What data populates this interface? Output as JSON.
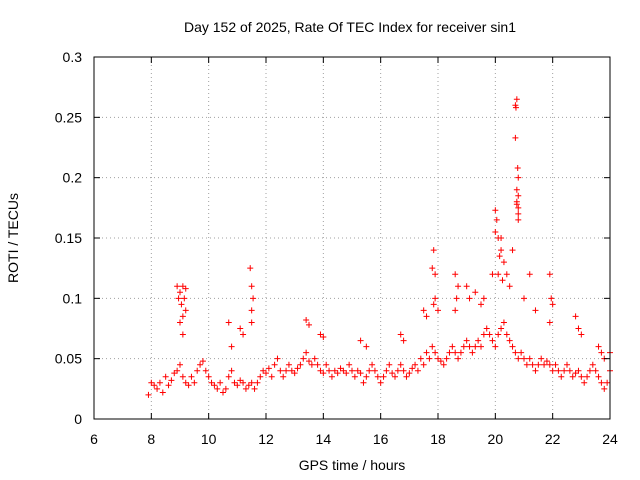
{
  "chart_data": {
    "type": "scatter",
    "title": "Day 152 of 2025, Rate Of TEC Index for receiver sin1",
    "xlabel": "GPS time / hours",
    "ylabel": "ROTI / TECUs",
    "xlim": [
      6,
      24
    ],
    "ylim": [
      0,
      0.3
    ],
    "x_ticks": [
      6,
      8,
      10,
      12,
      14,
      16,
      18,
      20,
      22,
      24
    ],
    "x_tick_labels": [
      "6",
      "8",
      "10",
      "12",
      "14",
      "16",
      "18",
      "20",
      "22",
      "24"
    ],
    "y_ticks": [
      0,
      0.05,
      0.1,
      0.15,
      0.2,
      0.25,
      0.3
    ],
    "y_tick_labels": [
      "0",
      "0.05",
      "0.1",
      "0.15",
      "0.2",
      "0.25",
      "0.3"
    ],
    "grid": true,
    "marker": "+",
    "series": [
      {
        "name": "ROTI",
        "color": "#ff0000",
        "x": [
          7.9,
          8.0,
          8.1,
          8.2,
          8.3,
          8.4,
          8.5,
          8.6,
          8.7,
          8.8,
          8.9,
          9.0,
          9.1,
          9.2,
          9.3,
          9.4,
          9.5,
          9.6,
          9.7,
          9.8,
          9.9,
          10.0,
          10.1,
          10.2,
          10.3,
          10.4,
          10.5,
          10.6,
          10.7,
          10.8,
          10.9,
          11.0,
          11.1,
          11.2,
          11.3,
          11.4,
          11.5,
          11.6,
          11.7,
          11.8,
          11.9,
          12.0,
          12.1,
          12.2,
          12.3,
          12.4,
          12.5,
          12.6,
          12.7,
          12.8,
          12.9,
          13.0,
          13.1,
          13.2,
          13.3,
          13.4,
          13.5,
          13.6,
          13.7,
          13.8,
          13.9,
          14.0,
          14.1,
          14.2,
          14.3,
          14.4,
          14.5,
          14.6,
          14.7,
          14.8,
          14.9,
          15.0,
          15.1,
          15.2,
          15.3,
          15.4,
          15.5,
          15.6,
          15.7,
          15.8,
          15.9,
          16.0,
          16.1,
          16.2,
          16.3,
          16.4,
          16.5,
          16.6,
          16.7,
          16.8,
          16.9,
          17.0,
          17.1,
          17.2,
          17.3,
          17.4,
          17.5,
          17.6,
          17.7,
          17.8,
          17.9,
          18.0,
          18.1,
          18.2,
          18.3,
          18.4,
          18.5,
          18.6,
          18.7,
          18.8,
          18.9,
          19.0,
          19.1,
          19.2,
          19.3,
          19.4,
          19.5,
          19.6,
          19.7,
          19.8,
          19.9,
          20.0,
          20.1,
          20.2,
          20.3,
          20.4,
          20.5,
          20.6,
          20.7,
          20.8,
          20.9,
          21.0,
          21.1,
          21.2,
          21.3,
          21.4,
          21.5,
          21.6,
          21.7,
          21.8,
          21.9,
          22.0,
          22.1,
          22.2,
          22.3,
          22.4,
          22.5,
          22.6,
          22.7,
          22.8,
          22.9,
          23.0,
          23.1,
          23.2,
          23.3,
          23.4,
          23.5,
          23.6,
          23.7,
          23.8,
          23.9,
          24.0,
          8.9,
          8.95,
          9.0,
          9.05,
          9.1,
          9.15,
          9.2,
          9.0,
          9.1,
          9.2,
          9.1,
          10.7,
          10.8,
          11.1,
          11.2,
          11.45,
          11.5,
          11.55,
          11.5,
          11.5,
          13.4,
          13.5,
          13.9,
          14.0,
          15.3,
          15.5,
          16.7,
          16.8,
          17.5,
          17.6,
          17.8,
          17.85,
          17.9,
          17.9,
          17.85,
          18.0,
          18.6,
          18.65,
          18.7,
          18.6,
          19.0,
          19.1,
          19.3,
          19.5,
          19.6,
          19.9,
          20.0,
          20.05,
          20.1,
          20.15,
          20.2,
          20.25,
          20.3,
          20.1,
          20.0,
          20.2,
          20.4,
          20.5,
          20.6,
          20.7,
          20.75,
          20.8,
          20.8,
          20.75,
          20.7,
          20.8,
          20.75,
          20.8,
          20.72,
          20.78,
          20.75,
          20.8,
          21.0,
          21.2,
          21.4,
          21.9,
          21.95,
          22.0,
          21.9,
          22.8,
          22.9,
          23.0,
          23.6,
          23.7,
          23.8,
          24.0
        ],
        "y": [
          0.02,
          0.03,
          0.028,
          0.025,
          0.03,
          0.022,
          0.035,
          0.028,
          0.032,
          0.038,
          0.04,
          0.045,
          0.035,
          0.03,
          0.028,
          0.035,
          0.03,
          0.04,
          0.045,
          0.048,
          0.04,
          0.035,
          0.03,
          0.028,
          0.025,
          0.03,
          0.022,
          0.025,
          0.035,
          0.04,
          0.03,
          0.028,
          0.032,
          0.03,
          0.025,
          0.028,
          0.03,
          0.025,
          0.03,
          0.035,
          0.04,
          0.038,
          0.042,
          0.035,
          0.045,
          0.05,
          0.04,
          0.035,
          0.04,
          0.045,
          0.04,
          0.038,
          0.042,
          0.045,
          0.05,
          0.055,
          0.048,
          0.045,
          0.05,
          0.045,
          0.04,
          0.038,
          0.045,
          0.04,
          0.035,
          0.04,
          0.038,
          0.042,
          0.04,
          0.038,
          0.045,
          0.04,
          0.035,
          0.04,
          0.038,
          0.03,
          0.035,
          0.04,
          0.045,
          0.04,
          0.035,
          0.03,
          0.035,
          0.04,
          0.045,
          0.038,
          0.035,
          0.04,
          0.045,
          0.04,
          0.035,
          0.038,
          0.042,
          0.045,
          0.04,
          0.05,
          0.045,
          0.055,
          0.05,
          0.06,
          0.055,
          0.05,
          0.048,
          0.045,
          0.05,
          0.055,
          0.06,
          0.055,
          0.05,
          0.055,
          0.06,
          0.065,
          0.06,
          0.055,
          0.06,
          0.065,
          0.06,
          0.07,
          0.075,
          0.07,
          0.065,
          0.06,
          0.07,
          0.075,
          0.08,
          0.07,
          0.065,
          0.06,
          0.055,
          0.05,
          0.055,
          0.05,
          0.045,
          0.05,
          0.045,
          0.04,
          0.045,
          0.05,
          0.045,
          0.048,
          0.045,
          0.04,
          0.045,
          0.04,
          0.035,
          0.04,
          0.045,
          0.04,
          0.035,
          0.038,
          0.04,
          0.035,
          0.03,
          0.035,
          0.04,
          0.045,
          0.04,
          0.035,
          0.03,
          0.025,
          0.03,
          0.04,
          0.11,
          0.1,
          0.105,
          0.095,
          0.11,
          0.1,
          0.108,
          0.08,
          0.085,
          0.09,
          0.07,
          0.08,
          0.06,
          0.075,
          0.07,
          0.125,
          0.11,
          0.1,
          0.09,
          0.08,
          0.082,
          0.078,
          0.07,
          0.068,
          0.065,
          0.06,
          0.07,
          0.065,
          0.09,
          0.085,
          0.125,
          0.14,
          0.12,
          0.1,
          0.095,
          0.09,
          0.12,
          0.1,
          0.11,
          0.09,
          0.11,
          0.1,
          0.105,
          0.095,
          0.1,
          0.12,
          0.155,
          0.165,
          0.15,
          0.135,
          0.14,
          0.115,
          0.13,
          0.12,
          0.173,
          0.15,
          0.12,
          0.11,
          0.14,
          0.26,
          0.265,
          0.2,
          0.185,
          0.19,
          0.233,
          0.17,
          0.178,
          0.175,
          0.258,
          0.208,
          0.18,
          0.165,
          0.1,
          0.12,
          0.09,
          0.12,
          0.1,
          0.095,
          0.08,
          0.085,
          0.075,
          0.07,
          0.06,
          0.055,
          0.05,
          0.055
        ]
      }
    ]
  }
}
